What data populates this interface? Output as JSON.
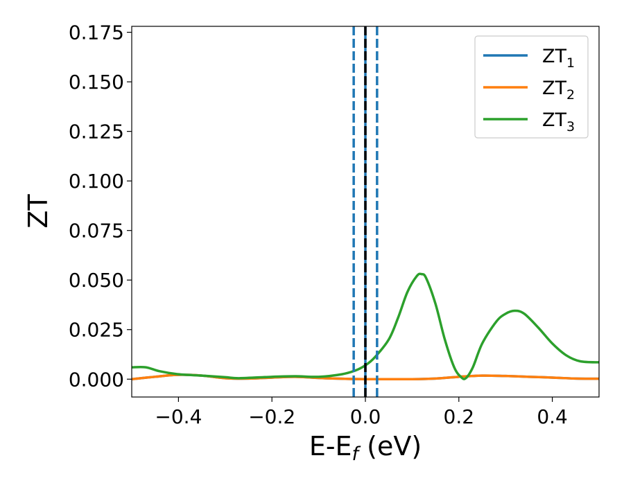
{
  "chart_data": {
    "type": "line",
    "xlabel": {
      "prefix": "E-E",
      "sub": "f",
      "suffix": " (eV)"
    },
    "ylabel": "ZT",
    "xlim": [
      -0.5,
      0.5
    ],
    "ylim": [
      -0.009,
      0.178
    ],
    "xticks": [
      -0.4,
      -0.2,
      0.0,
      0.2,
      0.4
    ],
    "xtick_labels": [
      "−0.4",
      "−0.2",
      "0.0",
      "0.2",
      "0.4"
    ],
    "yticks": [
      0.0,
      0.025,
      0.05,
      0.075,
      0.1,
      0.125,
      0.15,
      0.175
    ],
    "ytick_labels": [
      "0.000",
      "0.025",
      "0.050",
      "0.075",
      "0.100",
      "0.125",
      "0.150",
      "0.175"
    ],
    "grid": false,
    "legend_position": "top-right",
    "vertical_lines": [
      {
        "x": -0.025,
        "style": "dashed",
        "color": "#1f77b4"
      },
      {
        "x": 0.025,
        "style": "dashed",
        "color": "#1f77b4"
      },
      {
        "x": 0.0,
        "style": "solid",
        "color": "#1f77b4"
      },
      {
        "x": 0.0,
        "style": "dashed",
        "color": "#000000"
      }
    ],
    "series": [
      {
        "name": "ZT",
        "sub": "1",
        "color": "#1f77b4",
        "x": [
          -0.5,
          -0.45,
          -0.4,
          -0.35,
          -0.3,
          -0.25,
          -0.2,
          -0.15,
          -0.1,
          -0.05,
          0.0,
          0.05,
          0.1,
          0.15,
          0.2,
          0.25,
          0.3,
          0.35,
          0.4,
          0.45,
          0.5
        ],
        "y": [
          0.0,
          0.0012,
          0.0022,
          0.0018,
          0.0005,
          0.0003,
          0.0008,
          0.0012,
          0.0006,
          0.0002,
          0.0,
          0.0,
          0.0,
          0.0003,
          0.0012,
          0.0018,
          0.0016,
          0.0012,
          0.0008,
          0.0003,
          0.0002
        ]
      },
      {
        "name": "ZT",
        "sub": "2",
        "color": "#ff7f0e",
        "x": [
          -0.5,
          -0.45,
          -0.4,
          -0.35,
          -0.3,
          -0.25,
          -0.2,
          -0.15,
          -0.1,
          -0.05,
          0.0,
          0.05,
          0.1,
          0.15,
          0.2,
          0.25,
          0.3,
          0.35,
          0.4,
          0.45,
          0.5
        ],
        "y": [
          0.0,
          0.0012,
          0.0022,
          0.0018,
          0.0005,
          0.0003,
          0.0008,
          0.0012,
          0.0006,
          0.0002,
          0.0,
          0.0,
          0.0,
          0.0003,
          0.0012,
          0.0018,
          0.0016,
          0.0012,
          0.0008,
          0.0003,
          0.0002
        ]
      },
      {
        "name": "ZT",
        "sub": "3",
        "color": "#2ca02c",
        "x": [
          -0.5,
          -0.47,
          -0.44,
          -0.4,
          -0.35,
          -0.3,
          -0.27,
          -0.2,
          -0.15,
          -0.1,
          -0.05,
          -0.02,
          0.0,
          0.02,
          0.05,
          0.07,
          0.09,
          0.11,
          0.12,
          0.13,
          0.15,
          0.17,
          0.19,
          0.205,
          0.215,
          0.23,
          0.25,
          0.28,
          0.3,
          0.32,
          0.34,
          0.37,
          0.4,
          0.43,
          0.46,
          0.5
        ],
        "y": [
          0.006,
          0.006,
          0.004,
          0.0025,
          0.0018,
          0.001,
          0.0005,
          0.0012,
          0.0015,
          0.0012,
          0.0025,
          0.0045,
          0.007,
          0.011,
          0.02,
          0.031,
          0.044,
          0.052,
          0.053,
          0.051,
          0.038,
          0.02,
          0.006,
          0.001,
          0.0005,
          0.006,
          0.018,
          0.029,
          0.033,
          0.0345,
          0.033,
          0.026,
          0.018,
          0.012,
          0.009,
          0.0085
        ]
      }
    ]
  }
}
